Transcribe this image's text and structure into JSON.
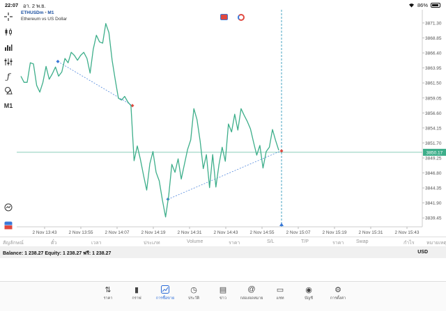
{
  "status_bar": {
    "time": "22:07",
    "date": "อา. 2 พ.ย.",
    "battery": "86%"
  },
  "chart": {
    "symbol": "ETHUSDm",
    "timeframe": "M1",
    "description": "Ethereum vs US Dollar",
    "current_price": "3850.17",
    "timeframe_label": "M1"
  },
  "chart_data": {
    "type": "line",
    "title": "ETHUSDm • M1",
    "subtitle": "Ethereum vs US Dollar",
    "ylim": [
      3838,
      3873
    ],
    "y_ticks": [
      "3871.30",
      "3868.85",
      "3866.40",
      "3863.95",
      "3861.50",
      "3859.05",
      "3856.60",
      "3854.15",
      "3851.70",
      "3849.25",
      "3846.80",
      "3844.35",
      "3841.90",
      "3839.45"
    ],
    "x_ticks": [
      "2 Nov 13:43",
      "2 Nov 13:55",
      "2 Nov 14:07",
      "2 Nov 14:19",
      "2 Nov 14:31",
      "2 Nov 14:43",
      "2 Nov 14:55",
      "2 Nov 15:07",
      "2 Nov 15:19",
      "2 Nov 15:31",
      "2 Nov 15:43"
    ],
    "series": [
      {
        "values": [
          3862.6,
          3861.6,
          3861.6,
          3864.8,
          3864.6,
          3861.1,
          3860.0,
          3861.6,
          3864.2,
          3862.1,
          3863.0,
          3864.1,
          3862.6,
          3863.3,
          3865.5,
          3864.8,
          3866.5,
          3866.0,
          3865.2,
          3866.0,
          3866.5,
          3865.5,
          3863.1,
          3867.0,
          3869.3,
          3868.2,
          3868.0,
          3871.2,
          3869.7,
          3865.2,
          3862.0,
          3859.0,
          3858.7,
          3859.3,
          3858.4,
          3857.8,
          3848.8,
          3851.2,
          3849.0,
          3846.4,
          3844.0,
          3848.3,
          3850.3,
          3846.9,
          3845.5,
          3842.4,
          3839.6,
          3843.1,
          3848.2,
          3846.9,
          3849.1,
          3845.8,
          3848.2,
          3850.6,
          3852.2,
          3857.3,
          3855.5,
          3852.0,
          3847.5,
          3849.8,
          3844.4,
          3849.8,
          3844.5,
          3848.2,
          3851.0,
          3848.7,
          3854.8,
          3853.5,
          3856.4,
          3853.8,
          3857.3,
          3856.2,
          3855.2,
          3854.0,
          3851.8,
          3849.7,
          3851.3,
          3847.6,
          3850.3,
          3851.0,
          3853.9,
          3852.1,
          3850.5
        ]
      }
    ],
    "current_price": 3850.17,
    "orders": [
      {
        "from": 3865.0,
        "to": 3857.8
      },
      {
        "from": 3842.5,
        "to": 3850.4
      }
    ],
    "grid": false
  },
  "toolbar": {
    "timeframe": "M1"
  },
  "trade_tabs": [
    "สัญลักษณ์",
    "ตั๋ว",
    "เวลา",
    "ประเภท",
    "Volume",
    "ราคา",
    "S/L",
    "T/P",
    "ราคา",
    "Swap",
    "กำไร",
    "หมายเหตุ"
  ],
  "account": {
    "balance_text": "Balance: 1 238.27 Equity: 1 238.27 ฟรี: 1 238.27",
    "currency": "USD"
  },
  "nav": [
    {
      "label": "ราคา",
      "icon": "quotes-icon"
    },
    {
      "label": "กราฟ",
      "icon": "candles-icon"
    },
    {
      "label": "การซื้อขาย",
      "icon": "trade-icon"
    },
    {
      "label": "ประวัติ",
      "icon": "history-icon"
    },
    {
      "label": "ข่าว",
      "icon": "news-icon"
    },
    {
      "label": "กล่องจดหมาย",
      "icon": "mail-icon"
    },
    {
      "label": "แชท",
      "icon": "chat-icon"
    },
    {
      "label": "บัญชี",
      "icon": "account-icon"
    },
    {
      "label": "การตั้งค่า",
      "icon": "settings-icon"
    }
  ],
  "colors": {
    "line": "#3dae8a",
    "price_tag": "#3dae8a",
    "crosshair": "#1b8fb5",
    "order_line": "#3a78d8",
    "active": "#2a6bd8"
  }
}
